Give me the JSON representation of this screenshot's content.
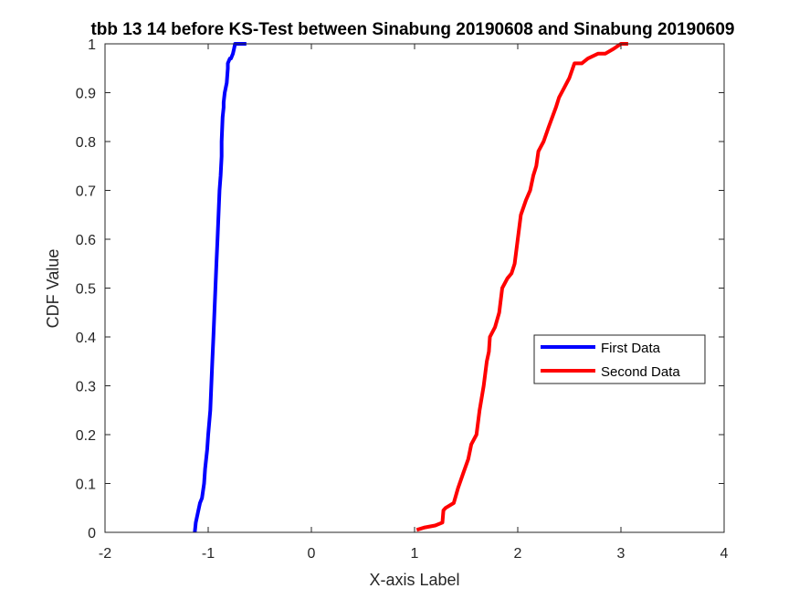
{
  "chart_data": {
    "type": "line",
    "title": "tbb 13 14 before KS-Test between Sinabung 20190608 and Sinabung 20190609",
    "xlabel": "X-axis Label",
    "ylabel": "CDF Value",
    "xlim": [
      -2,
      4
    ],
    "ylim": [
      0,
      1
    ],
    "xticks": [
      "-2",
      "-1",
      "0",
      "1",
      "2",
      "3",
      "4"
    ],
    "yticks": [
      "0",
      "0.1",
      "0.2",
      "0.3",
      "0.4",
      "0.5",
      "0.6",
      "0.7",
      "0.8",
      "0.9",
      "1"
    ],
    "grid": false,
    "legend_position": "right",
    "series": [
      {
        "name": "First Data",
        "color": "#0000ff",
        "x": [
          -1.13,
          -1.12,
          -1.1,
          -1.08,
          -1.06,
          -1.04,
          -1.03,
          -1.01,
          -1.0,
          -0.98,
          -0.97,
          -0.96,
          -0.95,
          -0.94,
          -0.93,
          -0.92,
          -0.91,
          -0.9,
          -0.89,
          -0.88,
          -0.87,
          -0.87,
          -0.86,
          -0.85,
          -0.85,
          -0.84,
          -0.82,
          -0.81,
          -0.81,
          -0.79,
          -0.78,
          -0.76,
          -0.75,
          -0.74,
          -0.72,
          -0.7,
          -0.68,
          -0.67,
          -0.65,
          -0.64,
          -0.63
        ],
        "y": [
          0.0,
          0.02,
          0.04,
          0.06,
          0.07,
          0.1,
          0.13,
          0.17,
          0.2,
          0.25,
          0.3,
          0.35,
          0.4,
          0.45,
          0.5,
          0.55,
          0.6,
          0.65,
          0.7,
          0.73,
          0.77,
          0.8,
          0.85,
          0.87,
          0.88,
          0.9,
          0.92,
          0.95,
          0.96,
          0.97,
          0.97,
          0.98,
          0.99,
          1.0,
          1.0,
          1.0,
          1.0,
          1.0,
          1.0,
          1.0,
          1.0
        ]
      },
      {
        "name": "Second Data",
        "color": "#ff0000",
        "x": [
          1.02,
          1.1,
          1.2,
          1.27,
          1.28,
          1.3,
          1.38,
          1.42,
          1.47,
          1.52,
          1.55,
          1.6,
          1.63,
          1.67,
          1.7,
          1.72,
          1.73,
          1.78,
          1.82,
          1.85,
          1.9,
          1.94,
          1.97,
          2.0,
          2.03,
          2.08,
          2.12,
          2.15,
          2.18,
          2.2,
          2.25,
          2.3,
          2.37,
          2.4,
          2.45,
          2.5,
          2.55,
          2.62,
          2.68,
          2.78,
          2.85,
          2.93,
          3.0,
          3.07
        ],
        "y": [
          0.005,
          0.01,
          0.014,
          0.02,
          0.045,
          0.05,
          0.06,
          0.09,
          0.12,
          0.15,
          0.18,
          0.2,
          0.25,
          0.3,
          0.35,
          0.37,
          0.4,
          0.42,
          0.45,
          0.5,
          0.52,
          0.53,
          0.55,
          0.6,
          0.65,
          0.68,
          0.7,
          0.73,
          0.75,
          0.78,
          0.8,
          0.83,
          0.87,
          0.89,
          0.91,
          0.93,
          0.96,
          0.96,
          0.97,
          0.98,
          0.98,
          0.99,
          1.0,
          1.0
        ]
      }
    ]
  }
}
